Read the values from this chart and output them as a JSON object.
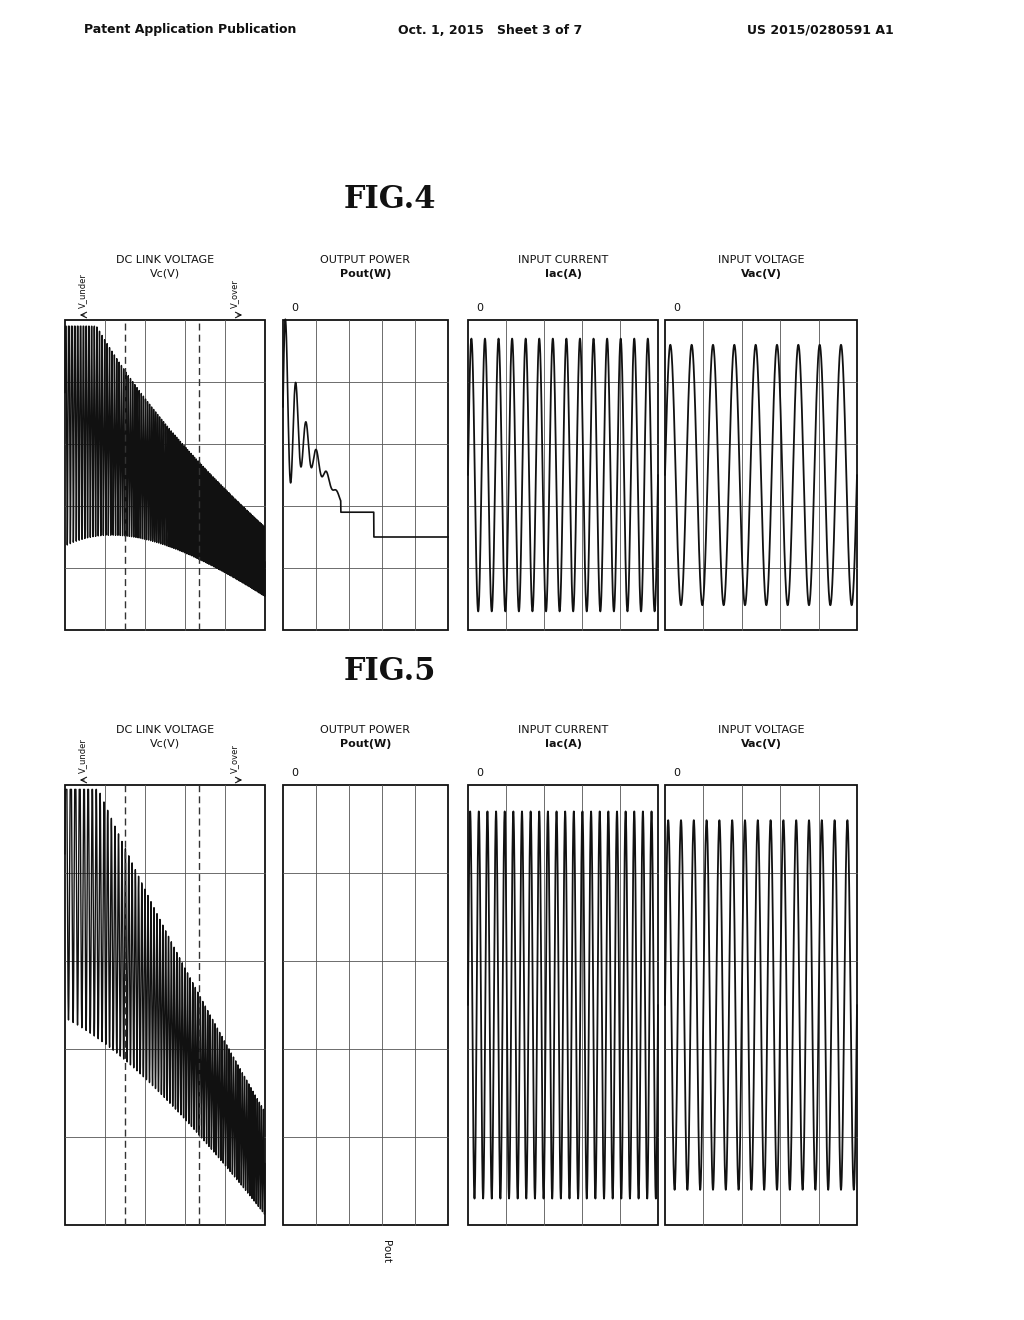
{
  "header_left": "Patent Application Publication",
  "header_mid": "Oct. 1, 2015   Sheet 3 of 7",
  "header_right": "US 2015/0280591 A1",
  "fig4_title": "FIG.4",
  "fig5_title": "FIG.5",
  "col_labels": [
    "DC LINK VOLTAGE\nVc(V)",
    "OUTPUT POWER\nPout(W)",
    "INPUT CURRENT\nIac(A)",
    "INPUT VOLTAGE\nVac(V)"
  ],
  "bg_color": "#ffffff",
  "text_color": "#111111"
}
